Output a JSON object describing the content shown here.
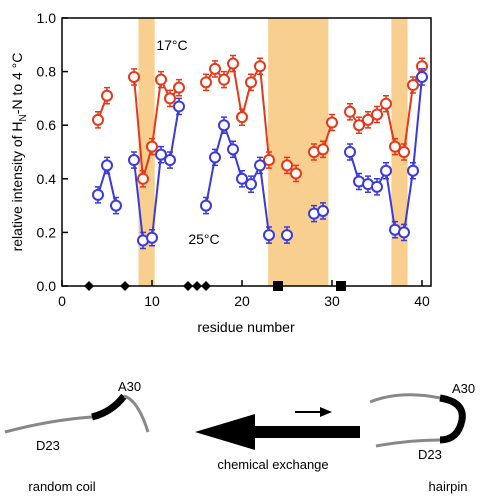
{
  "chart_data": {
    "type": "line",
    "ylabel": [
      "relative intensity of H",
      "N",
      "-N to 4 °C"
    ],
    "xlabel": "residue number",
    "xlim": [
      0,
      41
    ],
    "ylim": [
      0,
      1
    ],
    "xticks": [
      0,
      10,
      20,
      30,
      40
    ],
    "yticks": [
      {
        "value": 0,
        "label": "0.0"
      },
      {
        "value": 0.2,
        "label": "0.2"
      },
      {
        "value": 0.4,
        "label": "0.4"
      },
      {
        "value": 0.6,
        "label": "0.6"
      },
      {
        "value": 0.8,
        "label": "0.8"
      },
      {
        "value": 1,
        "label": "1.0"
      }
    ],
    "highlights": [
      [
        8.5,
        10.3
      ],
      [
        22.9,
        29.6
      ],
      [
        36.6,
        38.4
      ]
    ],
    "highlight_color": "#f9cf8f",
    "x": [
      1,
      2,
      3,
      4,
      5,
      6,
      7,
      8,
      9,
      10,
      11,
      12,
      13,
      14,
      15,
      16,
      17,
      18,
      19,
      20,
      21,
      22,
      23,
      24,
      25,
      26,
      27,
      28,
      29,
      30,
      31,
      32,
      33,
      34,
      35,
      36,
      37,
      38,
      39,
      40
    ],
    "series": [
      {
        "name": "17°C",
        "color": "#e8381a",
        "error": 0.03,
        "values": [
          null,
          null,
          null,
          0.62,
          0.71,
          null,
          null,
          0.78,
          0.4,
          0.52,
          0.77,
          0.7,
          0.74,
          null,
          null,
          0.76,
          0.81,
          0.77,
          0.83,
          0.63,
          0.76,
          0.82,
          0.47,
          null,
          0.45,
          0.42,
          null,
          0.5,
          0.51,
          0.61,
          null,
          0.65,
          0.6,
          0.62,
          0.64,
          0.68,
          0.52,
          0.5,
          0.75,
          0.82
        ]
      },
      {
        "name": "25°C",
        "color": "#3a3adf",
        "error": 0.03,
        "values": [
          null,
          null,
          null,
          0.34,
          0.45,
          0.3,
          null,
          0.47,
          0.17,
          0.18,
          0.49,
          0.47,
          0.67,
          null,
          null,
          0.3,
          0.48,
          0.6,
          0.51,
          0.4,
          0.38,
          0.45,
          0.19,
          null,
          0.19,
          null,
          null,
          0.27,
          0.28,
          null,
          null,
          0.5,
          0.39,
          0.38,
          0.37,
          0.43,
          0.21,
          0.2,
          0.43,
          0.78
        ]
      }
    ],
    "markers": [
      {
        "shape": "diamond",
        "x": [
          3,
          7,
          14,
          15,
          16
        ],
        "values": [
          0,
          0,
          0,
          0,
          0
        ]
      },
      {
        "shape": "square",
        "x": [
          24,
          31
        ],
        "values": [
          0,
          0
        ]
      }
    ]
  },
  "scheme": {
    "left_a30": "A30",
    "left_d23": "D23",
    "right_a30": "A30",
    "right_d23": "D23",
    "exchange": "chemical exchange",
    "left_state": "random coil",
    "right_state": "hairpin"
  }
}
